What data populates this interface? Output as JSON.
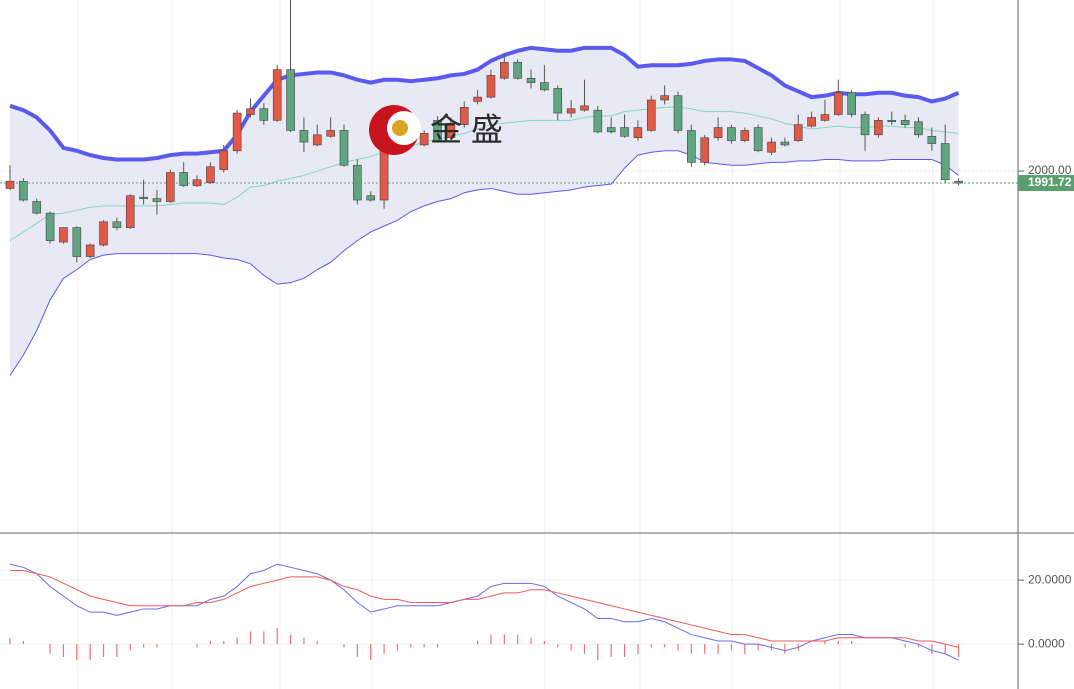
{
  "watermark": "金 盛",
  "chart_data": [
    {
      "type": "candlestick",
      "open": [
        1988,
        1993,
        1979,
        1971,
        1951,
        1961,
        1941,
        1949,
        1965,
        1961,
        1982,
        1981,
        1979,
        1999,
        1990,
        1992,
        2001,
        2014,
        2039,
        2043,
        2035,
        2070,
        2028,
        2018,
        2024,
        2028,
        2004,
        1983,
        1980,
        2034,
        2035,
        2018,
        2035,
        2023,
        2032,
        2048,
        2051,
        2064,
        2075,
        2064,
        2061,
        2057,
        2040,
        2042,
        2042,
        2030,
        2030,
        2023,
        2028,
        2049,
        2052,
        2028,
        2006,
        2023,
        2030,
        2021,
        2030,
        2013,
        2020,
        2021,
        2031,
        2035,
        2039,
        2054,
        2039,
        2025,
        2035,
        2035,
        2034,
        2024,
        2019,
        1993
      ],
      "high": [
        2004,
        1995,
        1981,
        1972,
        1961,
        1962,
        1950,
        1966,
        1968,
        1984,
        1994,
        1987,
        2001,
        2006,
        1997,
        2006,
        2018,
        2042,
        2050,
        2047,
        2073,
        2118,
        2037,
        2032,
        2037,
        2032,
        2008,
        1986,
        2037,
        2037,
        2039,
        2028,
        2038,
        2037,
        2048,
        2056,
        2070,
        2080,
        2077,
        2070,
        2073,
        2059,
        2049,
        2063,
        2045,
        2037,
        2039,
        2035,
        2052,
        2059,
        2055,
        2032,
        2025,
        2037,
        2032,
        2030,
        2032,
        2023,
        2023,
        2039,
        2041,
        2049,
        2063,
        2056,
        2041,
        2037,
        2041,
        2039,
        2037,
        2030,
        2032,
        1995
      ],
      "low": [
        1987,
        1979,
        1970,
        1950,
        1950,
        1937,
        1940,
        1948,
        1959,
        1960,
        1977,
        1970,
        1978,
        1989,
        1989,
        1991,
        1999,
        2012,
        2037,
        2032,
        2034,
        2027,
        2013,
        2017,
        2023,
        2003,
        1977,
        1979,
        1974,
        2027,
        2023,
        2017,
        2020,
        2021,
        2030,
        2046,
        2050,
        2063,
        2063,
        2057,
        2055,
        2035,
        2037,
        2041,
        2026,
        2026,
        2023,
        2021,
        2027,
        2046,
        2026,
        2003,
        2004,
        2021,
        2019,
        2020,
        2013,
        2011,
        2017,
        2020,
        2030,
        2034,
        2038,
        2037,
        2014,
        2023,
        2032,
        2030,
        2023,
        2014,
        1992,
        1990
      ],
      "close": [
        1993,
        1980,
        1971,
        1952,
        1961,
        1941,
        1949,
        1965,
        1961,
        1983,
        1981,
        1979,
        1999,
        1990,
        1994,
        2003,
        2014,
        2040,
        2043,
        2035,
        2070,
        2028,
        2020,
        2025,
        2028,
        2004,
        1980,
        1980,
        2034,
        2028,
        2025,
        2026,
        2021,
        2033,
        2044,
        2051,
        2066,
        2075,
        2064,
        2061,
        2056,
        2040,
        2043,
        2045,
        2027,
        2027,
        2024,
        2030,
        2049,
        2052,
        2028,
        2006,
        2023,
        2030,
        2021,
        2028,
        2014,
        2020,
        2018,
        2032,
        2037,
        2039,
        2054,
        2039,
        2025,
        2035,
        2034,
        2032,
        2025,
        2019,
        1994,
        1991.72
      ],
      "up_color": "#e05a45",
      "down_color": "#5fa57f",
      "bands": {
        "upper": [
          2045,
          2042,
          2037,
          2028,
          2016,
          2014,
          2011,
          2009,
          2008,
          2008,
          2008,
          2009,
          2011,
          2012,
          2012,
          2013,
          2014,
          2025,
          2041,
          2052,
          2063,
          2066,
          2067,
          2068,
          2068,
          2066,
          2063,
          2061,
          2063,
          2063,
          2062,
          2063,
          2064,
          2066,
          2067,
          2070,
          2076,
          2080,
          2083,
          2085,
          2084,
          2083,
          2083,
          2085,
          2085,
          2085,
          2080,
          2072,
          2073,
          2073,
          2073,
          2074,
          2076,
          2077,
          2077,
          2076,
          2071,
          2066,
          2059,
          2055,
          2051,
          2052,
          2054,
          2053,
          2053,
          2054,
          2054,
          2052,
          2051,
          2048,
          2050,
          2054
        ],
        "middle": [
          1952,
          1958,
          1964,
          1970,
          1971,
          1973,
          1975,
          1976,
          1976,
          1976,
          1976,
          1976,
          1977,
          1978,
          1978,
          1978,
          1977,
          1982,
          1989,
          1990,
          1993,
          1995,
          1997,
          2000,
          2003,
          2006,
          2008,
          2010,
          2013,
          2015,
          2017,
          2020,
          2022,
          2024,
          2026,
          2029,
          2032,
          2033,
          2034,
          2035,
          2035,
          2035,
          2035,
          2037,
          2038,
          2038,
          2041,
          2042,
          2043,
          2044,
          2044,
          2043,
          2041,
          2041,
          2041,
          2040,
          2038,
          2036,
          2033,
          2031,
          2029,
          2030,
          2031,
          2030,
          2030,
          2031,
          2031,
          2030,
          2030,
          2028,
          2027,
          2026
        ],
        "lower": [
          1859,
          1873,
          1890,
          1911,
          1926,
          1932,
          1939,
          1942,
          1943,
          1943,
          1943,
          1943,
          1943,
          1943,
          1943,
          1942,
          1940,
          1939,
          1936,
          1928,
          1922,
          1923,
          1926,
          1932,
          1937,
          1945,
          1952,
          1958,
          1962,
          1966,
          1972,
          1976,
          1979,
          1981,
          1985,
          1987,
          1988,
          1986,
          1984,
          1984,
          1985,
          1986,
          1987,
          1989,
          1990,
          1991,
          2002,
          2011,
          2013,
          2014,
          2014,
          2011,
          2006,
          2005,
          2004,
          2004,
          2005,
          2006,
          2006,
          2007,
          2007,
          2008,
          2008,
          2007,
          2007,
          2007,
          2008,
          2008,
          2008,
          2008,
          2004,
          1997
        ],
        "upper_color": "#5a5aee",
        "middle_color": "#80d8c0",
        "lower_color": "#5a5aee",
        "fill": "#e4e4f2"
      },
      "ylim": [
        1751,
        2118
      ],
      "yticks": [
        {
          "value": 2000,
          "label": "2000.00"
        }
      ],
      "last_price_color": "#5a9e72"
    },
    {
      "type": "macd",
      "series": [
        {
          "color": "#6a6af0",
          "values": [
            25,
            24,
            22,
            18,
            15,
            12,
            10,
            10,
            9,
            10,
            11,
            11,
            12,
            12,
            12,
            14,
            15,
            18,
            22,
            23,
            25,
            24,
            23,
            22,
            20,
            17,
            13,
            10,
            11,
            12,
            12,
            12,
            12,
            13,
            14,
            15,
            18,
            19,
            19,
            19,
            18,
            15,
            13,
            11,
            8,
            8,
            7,
            7,
            8,
            7,
            5,
            3,
            2,
            1,
            1,
            0,
            0,
            -1,
            -2,
            -1,
            1,
            2,
            3,
            3,
            2,
            2,
            2,
            1,
            0,
            -2,
            -3,
            -5
          ]
        },
        {
          "color": "#f05a5a",
          "values": [
            23,
            23,
            22,
            21,
            19,
            17,
            15,
            14,
            13,
            12,
            12,
            12,
            12,
            12,
            13,
            13,
            14,
            16,
            18,
            19,
            20,
            21,
            21,
            21,
            20,
            18,
            17,
            15,
            14,
            14,
            13,
            13,
            13,
            13,
            14,
            14,
            15,
            16,
            16,
            17,
            17,
            16,
            15,
            14,
            13,
            12,
            11,
            10,
            9,
            8,
            7,
            6,
            5,
            4,
            3,
            3,
            2,
            1,
            1,
            1,
            1,
            1,
            2,
            2,
            2,
            2,
            2,
            2,
            1,
            1,
            0,
            -1
          ]
        }
      ],
      "histogram": {
        "color": "#f07070",
        "values": [
          2,
          1,
          0,
          -3,
          -4,
          -5,
          -5,
          -4,
          -4,
          -2,
          -1,
          -1,
          0,
          0,
          -1,
          1,
          1,
          2,
          4,
          4,
          5,
          3,
          2,
          1,
          0,
          -1,
          -4,
          -5,
          -3,
          -2,
          -1,
          -1,
          -1,
          0,
          0,
          1,
          3,
          3,
          3,
          2,
          1,
          -1,
          -2,
          -3,
          -5,
          -4,
          -4,
          -3,
          -1,
          -1,
          -2,
          -3,
          -3,
          -3,
          -2,
          -3,
          -2,
          -2,
          -3,
          -2,
          0,
          1,
          1,
          1,
          0,
          0,
          0,
          -1,
          -1,
          -3,
          -3,
          -4
        ]
      },
      "ylim": [
        -14,
        34.4
      ],
      "yticks": [
        {
          "value": 20,
          "label": "20.0000"
        },
        {
          "value": 0,
          "label": "0.0000"
        }
      ]
    }
  ]
}
